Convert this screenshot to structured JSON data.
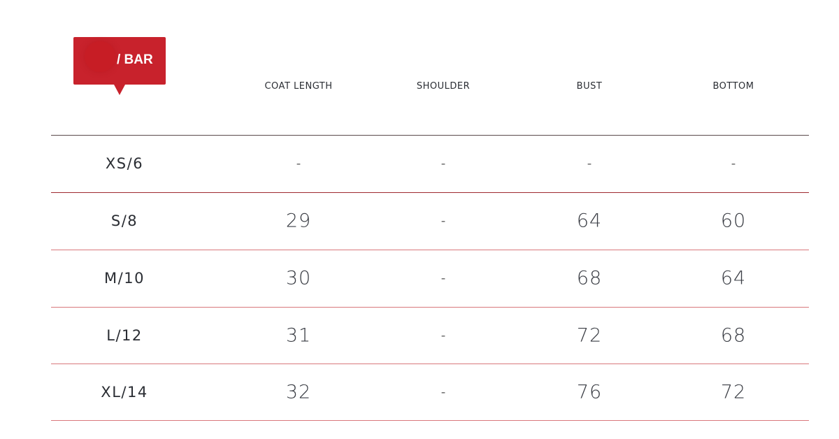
{
  "badge": {
    "label": "/ BAR",
    "color": "#c8222c"
  },
  "columns": [
    "COAT LENGTH",
    "SHOULDER",
    "BUST",
    "BOTTOM"
  ],
  "rows": [
    {
      "size": "XS/6",
      "values": [
        "-",
        "-",
        "-",
        "-"
      ]
    },
    {
      "size": "S/8",
      "values": [
        "29",
        "-",
        "64",
        "60"
      ]
    },
    {
      "size": "M/10",
      "values": [
        "30",
        "-",
        "68",
        "64"
      ]
    },
    {
      "size": "L/12",
      "values": [
        "31",
        "-",
        "72",
        "68"
      ]
    },
    {
      "size": "XL/14",
      "values": [
        "32",
        "-",
        "76",
        "72"
      ]
    }
  ],
  "colors": {
    "line_dark": "#9e2a2f",
    "line_light": "#d9787c"
  }
}
